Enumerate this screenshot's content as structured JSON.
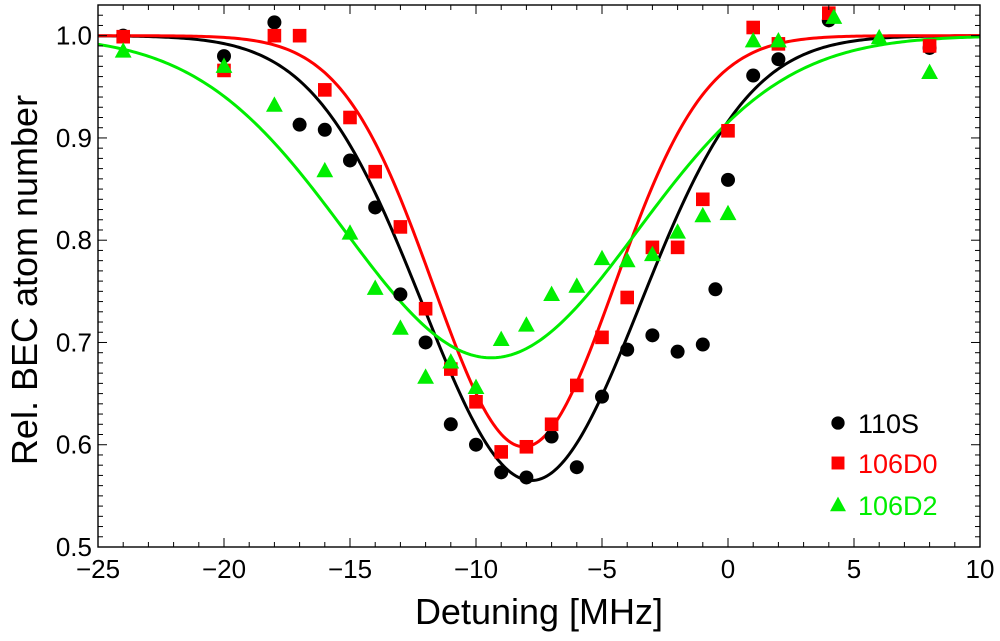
{
  "chart_data": {
    "type": "scatter",
    "xlabel": "Detuning [MHz]",
    "ylabel": "Rel. BEC atom number",
    "xlim": [
      -25,
      10
    ],
    "ylim": [
      0.5,
      1.03
    ],
    "xticks": [
      -25,
      -20,
      -15,
      -10,
      -5,
      0,
      5,
      10
    ],
    "xtick_labels": [
      "−25",
      "−20",
      "−15",
      "−10",
      "−5",
      "0",
      "5",
      "10"
    ],
    "yticks": [
      0.5,
      0.6,
      0.7,
      0.8,
      0.9,
      1.0
    ],
    "ytick_labels": [
      "0.5",
      "0.6",
      "0.7",
      "0.8",
      "0.9",
      "1.0"
    ],
    "grid": false,
    "legend_position": "bottom-right",
    "series": [
      {
        "name": "110S",
        "marker": "circle",
        "color": "#000000",
        "points": [
          {
            "x": -24,
            "y": 1.0
          },
          {
            "x": -20,
            "y": 0.98
          },
          {
            "x": -18,
            "y": 1.013
          },
          {
            "x": -17,
            "y": 0.913
          },
          {
            "x": -16,
            "y": 0.908
          },
          {
            "x": -15,
            "y": 0.878
          },
          {
            "x": -14,
            "y": 0.832
          },
          {
            "x": -13,
            "y": 0.747
          },
          {
            "x": -12,
            "y": 0.7
          },
          {
            "x": -11,
            "y": 0.62
          },
          {
            "x": -10,
            "y": 0.6
          },
          {
            "x": -9,
            "y": 0.573
          },
          {
            "x": -8,
            "y": 0.568
          },
          {
            "x": -7,
            "y": 0.608
          },
          {
            "x": -6,
            "y": 0.578
          },
          {
            "x": -5,
            "y": 0.647
          },
          {
            "x": -4,
            "y": 0.693
          },
          {
            "x": -3,
            "y": 0.707
          },
          {
            "x": -2,
            "y": 0.691
          },
          {
            "x": -1,
            "y": 0.698
          },
          {
            "x": -0.5,
            "y": 0.752
          },
          {
            "x": 0,
            "y": 0.859
          },
          {
            "x": 1,
            "y": 0.961
          },
          {
            "x": 2,
            "y": 0.977
          },
          {
            "x": 4,
            "y": 1.015
          },
          {
            "x": 8,
            "y": 0.988
          }
        ],
        "fit": {
          "baseline": 1.0,
          "depth": 0.435,
          "center": -7.8,
          "sigma": 4.3
        }
      },
      {
        "name": "106D0",
        "marker": "square",
        "color": "#ff0000",
        "points": [
          {
            "x": -24,
            "y": 0.999
          },
          {
            "x": -20,
            "y": 0.966
          },
          {
            "x": -18,
            "y": 1.0
          },
          {
            "x": -17,
            "y": 1.0
          },
          {
            "x": -16,
            "y": 0.947
          },
          {
            "x": -15,
            "y": 0.92
          },
          {
            "x": -14,
            "y": 0.867
          },
          {
            "x": -13,
            "y": 0.813
          },
          {
            "x": -12,
            "y": 0.733
          },
          {
            "x": -11,
            "y": 0.674
          },
          {
            "x": -10,
            "y": 0.642
          },
          {
            "x": -9,
            "y": 0.593
          },
          {
            "x": -8,
            "y": 0.598
          },
          {
            "x": -7,
            "y": 0.62
          },
          {
            "x": -6,
            "y": 0.658
          },
          {
            "x": -5,
            "y": 0.705
          },
          {
            "x": -4,
            "y": 0.744
          },
          {
            "x": -3,
            "y": 0.793
          },
          {
            "x": -2,
            "y": 0.793
          },
          {
            "x": -1,
            "y": 0.84
          },
          {
            "x": 0,
            "y": 0.907
          },
          {
            "x": 1,
            "y": 1.008
          },
          {
            "x": 2,
            "y": 0.992
          },
          {
            "x": 4,
            "y": 1.022
          },
          {
            "x": 8,
            "y": 0.99
          }
        ],
        "fit": {
          "baseline": 1.0,
          "depth": 0.402,
          "center": -8.1,
          "sigma": 3.6
        }
      },
      {
        "name": "106D2",
        "marker": "triangle",
        "color": "#00ee00",
        "points": [
          {
            "x": -24,
            "y": 0.985
          },
          {
            "x": -20,
            "y": 0.97
          },
          {
            "x": -18,
            "y": 0.932
          },
          {
            "x": -16,
            "y": 0.868
          },
          {
            "x": -15,
            "y": 0.807
          },
          {
            "x": -14,
            "y": 0.753
          },
          {
            "x": -13,
            "y": 0.714
          },
          {
            "x": -12,
            "y": 0.666
          },
          {
            "x": -11,
            "y": 0.681
          },
          {
            "x": -10,
            "y": 0.656
          },
          {
            "x": -9,
            "y": 0.703
          },
          {
            "x": -8,
            "y": 0.717
          },
          {
            "x": -7,
            "y": 0.747
          },
          {
            "x": -6,
            "y": 0.755
          },
          {
            "x": -5,
            "y": 0.782
          },
          {
            "x": -4,
            "y": 0.78
          },
          {
            "x": -3,
            "y": 0.786
          },
          {
            "x": -2,
            "y": 0.808
          },
          {
            "x": -1,
            "y": 0.824
          },
          {
            "x": 0,
            "y": 0.826
          },
          {
            "x": 1,
            "y": 0.995
          },
          {
            "x": 2,
            "y": 0.995
          },
          {
            "x": 4.2,
            "y": 1.018
          },
          {
            "x": 6,
            "y": 0.998
          },
          {
            "x": 8,
            "y": 0.964
          }
        ],
        "fit": {
          "baseline": 1.0,
          "depth": 0.315,
          "center": -9.4,
          "sigma": 5.8
        }
      }
    ]
  }
}
